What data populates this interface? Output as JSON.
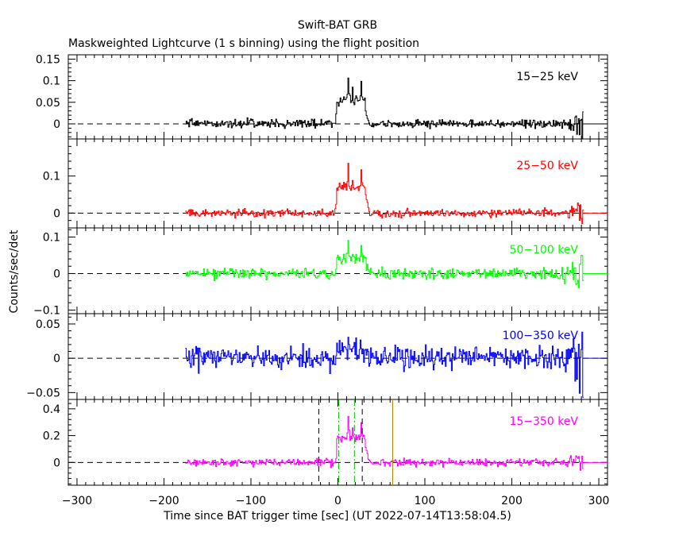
{
  "header": {
    "title": "Swift-BAT GRB",
    "subtitle": "Maskweighted Lightcurve (1 s binning) using the flight position"
  },
  "axes": {
    "xlabel": "Time since BAT trigger time [sec] (UT 2022-07-14T13:58:04.5)",
    "ylabel": "Counts/sec/det"
  },
  "chart_data": {
    "type": "line",
    "xlim": [
      -310,
      310
    ],
    "xticks": [
      -300,
      -200,
      -100,
      0,
      100,
      200,
      300
    ],
    "x_range": [
      -175,
      282
    ],
    "binning_s": 1,
    "grid": false,
    "panels": [
      {
        "name": "15-25 keV",
        "label": "15−25 keV",
        "color": "#000000",
        "ylim": [
          -0.035,
          0.16
        ],
        "yticks": [
          0,
          0.05,
          0.1,
          0.15
        ],
        "ytick_labels": [
          "0",
          "0.05",
          "0.1",
          "0.15"
        ],
        "noise": 0.007,
        "amp": 0.11
      },
      {
        "name": "25-50 keV",
        "label": "25−50 keV",
        "color": "#ff0000",
        "ylim": [
          -0.04,
          0.2
        ],
        "yticks": [
          0,
          0.1
        ],
        "ytick_labels": [
          "0",
          "0.1"
        ],
        "noise": 0.008,
        "amp": 0.135
      },
      {
        "name": "50-100 keV",
        "label": "50−100 keV",
        "color": "#00ff00",
        "ylim": [
          -0.11,
          0.125
        ],
        "yticks": [
          -0.1,
          0,
          0.1
        ],
        "ytick_labels": [
          "−0.1",
          "0",
          "0.1"
        ],
        "noise": 0.01,
        "amp": 0.085
      },
      {
        "name": "100-350 keV",
        "label": "100−350 keV",
        "color": "#0000ff",
        "ylim": [
          -0.06,
          0.065
        ],
        "yticks": [
          -0.05,
          0,
          0.05
        ],
        "ytick_labels": [
          "−0.05",
          "0",
          "0.05"
        ],
        "noise": 0.012,
        "amp": 0.022
      },
      {
        "name": "15-350 keV",
        "label": "15−350 keV",
        "color": "#ff00ff",
        "ylim": [
          -0.17,
          0.47
        ],
        "yticks": [
          0,
          0.2,
          0.4
        ],
        "ytick_labels": [
          "0",
          "0.2",
          "0.4"
        ],
        "noise": 0.02,
        "amp": 0.37
      }
    ],
    "burst_peaks": [
      {
        "t": 2,
        "rel": 0.55
      },
      {
        "t": 7,
        "rel": 0.6
      },
      {
        "t": 12,
        "rel": 0.95
      },
      {
        "t": 17,
        "rel": 0.7
      },
      {
        "t": 22,
        "rel": 0.5
      },
      {
        "t": 27,
        "rel": 0.85
      }
    ],
    "markers": {
      "black_dashed": [
        -22,
        28
      ],
      "green_dashdot": [
        1,
        19
      ],
      "orange_solid": [
        63
      ]
    }
  },
  "colors": {
    "axes": "#000000",
    "background": "#ffffff",
    "marker_black": "#000000",
    "marker_green": "#00c000",
    "marker_orange": "#b8860b"
  }
}
